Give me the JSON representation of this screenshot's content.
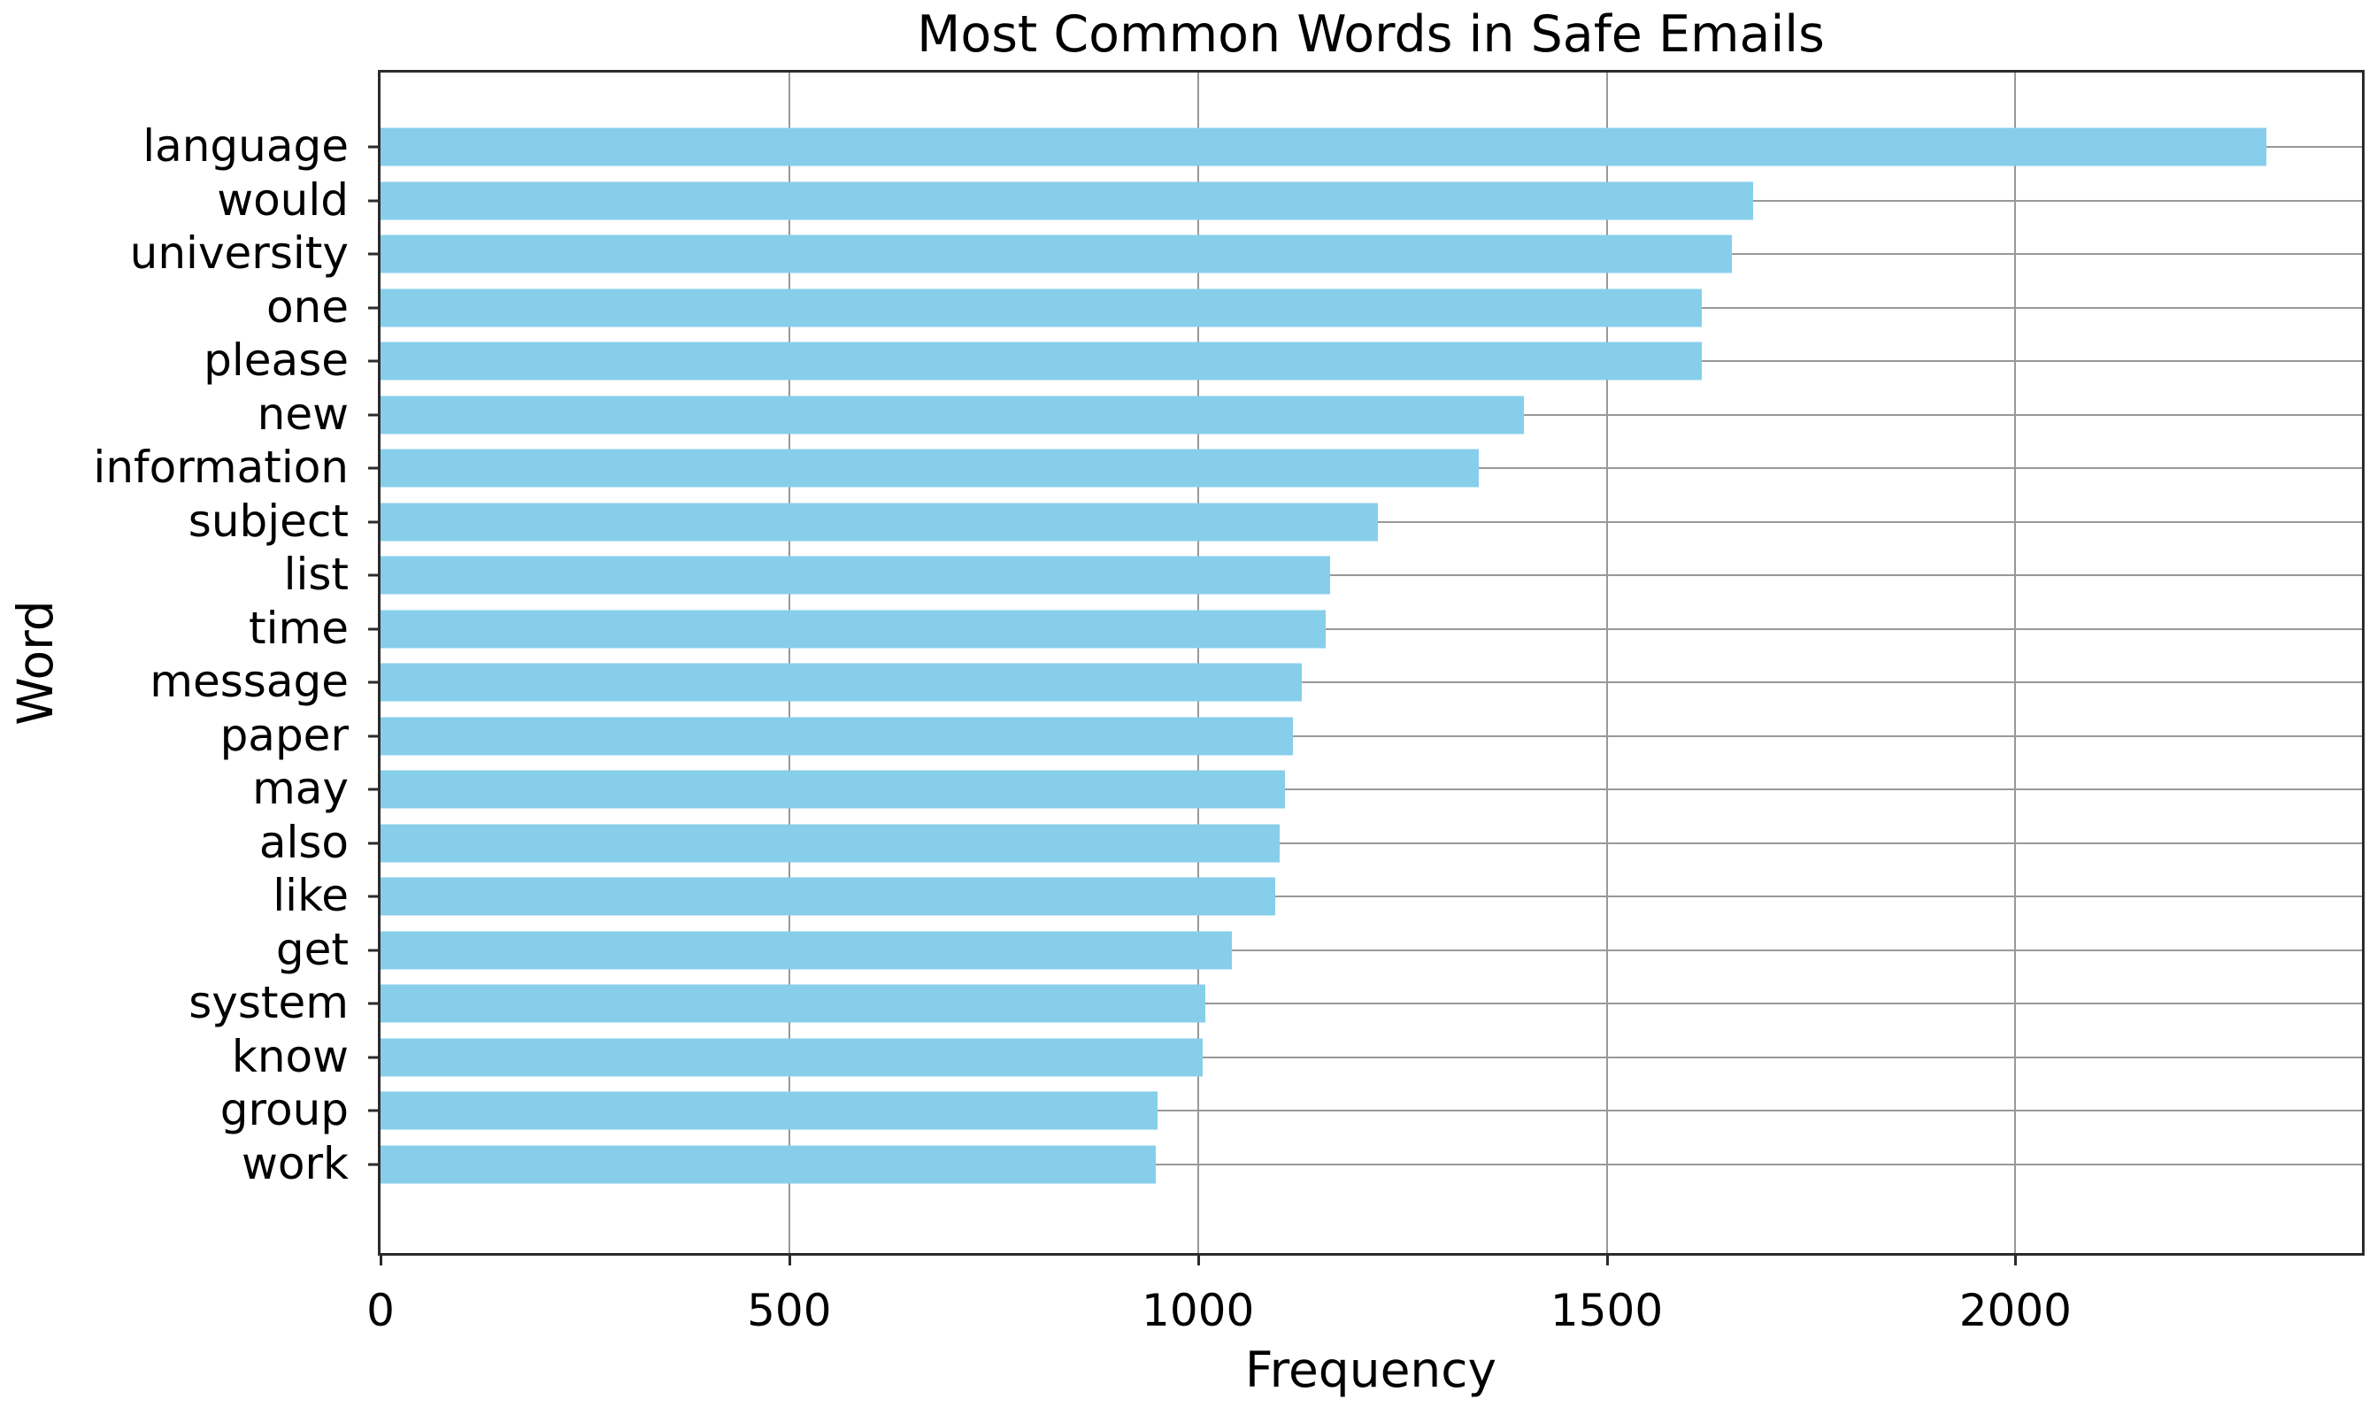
{
  "chart_data": {
    "type": "bar",
    "orientation": "horizontal",
    "title": "Most Common Words in Safe Emails",
    "xlabel": "Frequency",
    "ylabel": "Word",
    "categories": [
      "language",
      "would",
      "university",
      "one",
      "please",
      "new",
      "information",
      "subject",
      "list",
      "time",
      "message",
      "paper",
      "may",
      "also",
      "like",
      "get",
      "system",
      "know",
      "group",
      "work"
    ],
    "values": [
      2307,
      1679,
      1653,
      1616,
      1616,
      1399,
      1344,
      1220,
      1162,
      1156,
      1127,
      1116,
      1106,
      1100,
      1094,
      1041,
      1009,
      1006,
      951,
      948
    ],
    "xticks": [
      0,
      500,
      1000,
      1500,
      2000
    ],
    "xlim": [
      0,
      2424
    ],
    "grid": true,
    "legend_position": "none",
    "bar_color": "#87CEEB"
  },
  "colors": {
    "bar": "#87CEEB",
    "grid": "#989898",
    "spine": "#2b2b2b",
    "text": "#000000",
    "background": "#ffffff"
  }
}
